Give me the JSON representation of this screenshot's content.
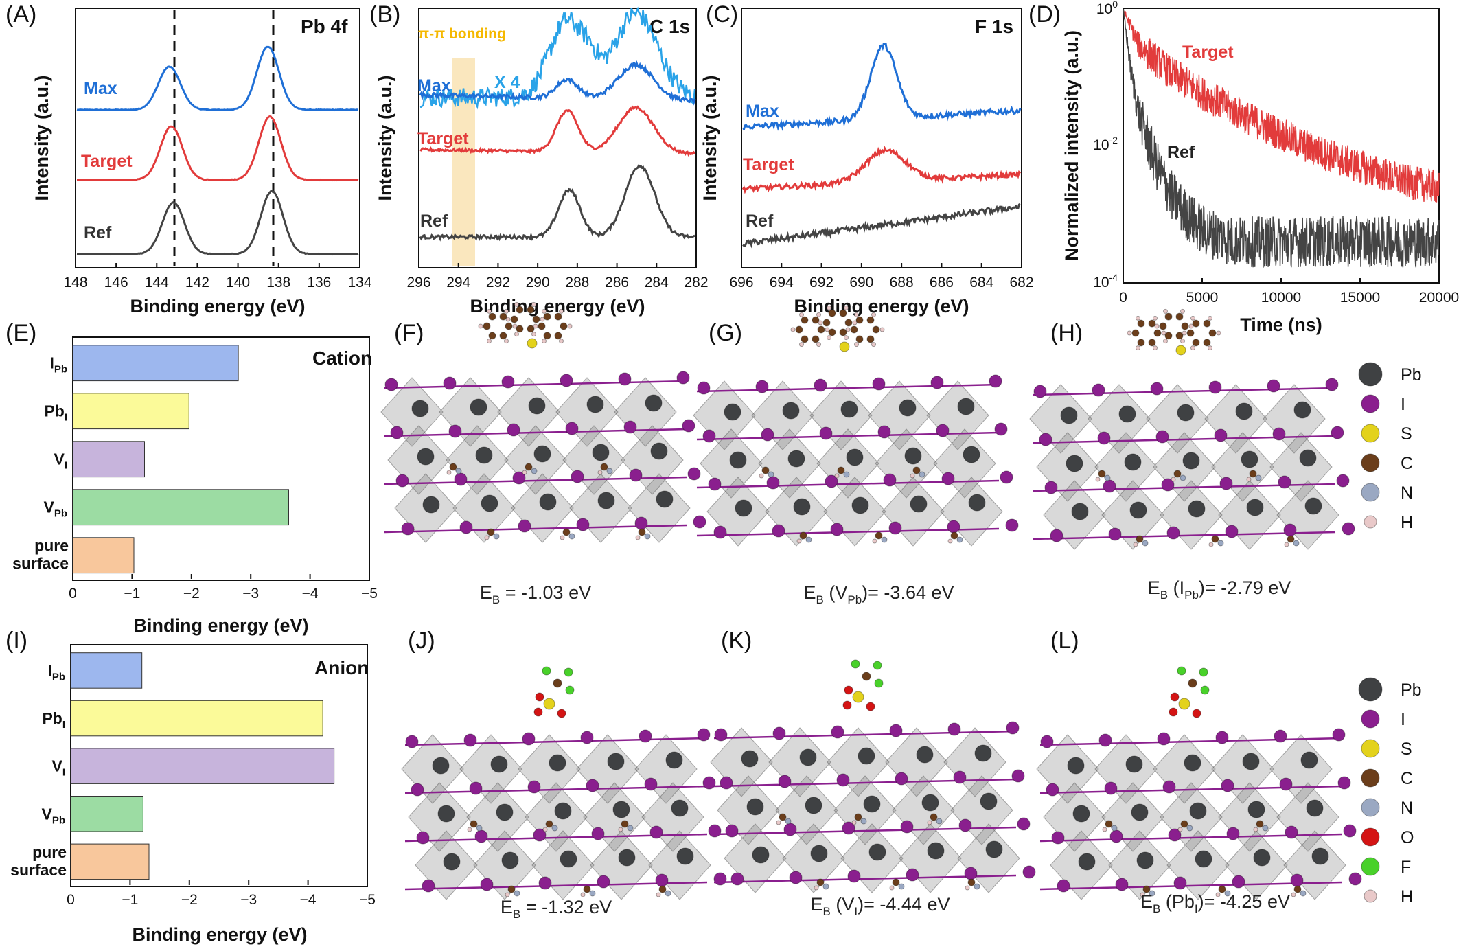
{
  "panels": {
    "A": {
      "label": "(A)",
      "corner": "Pb 4f",
      "ylabel": "Intensity (a.u.)",
      "xlabel": "Binding energy (eV)",
      "xticks": [
        "148",
        "146",
        "144",
        "142",
        "140",
        "138",
        "136",
        "134"
      ],
      "series": [
        "Max",
        "Target",
        "Ref"
      ]
    },
    "B": {
      "label": "(B)",
      "corner": "C 1s",
      "ylabel": "Intensity (a.u.)",
      "xlabel": "Binding energy (eV)",
      "xticks": [
        "296",
        "294",
        "292",
        "290",
        "288",
        "286",
        "284",
        "282"
      ],
      "series": [
        "Max",
        "Target",
        "Ref"
      ],
      "annotation": "π-π bonding",
      "zoom": "X 4"
    },
    "C": {
      "label": "(C)",
      "corner": "F 1s",
      "ylabel": "Intensity (a.u.)",
      "xlabel": "Binding energy (eV)",
      "xticks": [
        "696",
        "694",
        "692",
        "690",
        "688",
        "686",
        "684",
        "682"
      ],
      "series": [
        "Max",
        "Target",
        "Ref"
      ]
    },
    "D": {
      "label": "(D)",
      "ylabel": "Normalized intensity (a.u.)",
      "xlabel": "Time (ns)",
      "xticks": [
        "0",
        "5000",
        "10000",
        "15000",
        "20000"
      ],
      "series": [
        "Target",
        "Ref"
      ]
    },
    "E": {
      "label": "(E)",
      "corner": "Cation",
      "xlabel": "Binding energy (eV)",
      "xticks": [
        "0",
        "−1",
        "−2",
        "−3",
        "−4",
        "−5"
      ]
    },
    "I": {
      "label": "(I)",
      "corner": "Anion",
      "xlabel": "Binding energy (eV)",
      "xticks": [
        "0",
        "−1",
        "−2",
        "−3",
        "−4",
        "−5"
      ]
    }
  },
  "structures": [
    {
      "label": "(F)",
      "eb": "E",
      "sub": "B",
      "rest": " = -1.03 eV",
      "type": "cation"
    },
    {
      "label": "(G)",
      "eb": "E",
      "sub": "B",
      "mid": " (V",
      "midsub": "Pb",
      "rest": ")= -3.64 eV",
      "type": "cation"
    },
    {
      "label": "(H)",
      "eb": "E",
      "sub": "B",
      "mid": " (I",
      "midsub": "Pb",
      "rest": ")= -2.79 eV",
      "type": "cation"
    },
    {
      "label": "(J)",
      "eb": "E",
      "sub": "B",
      "rest": " = -1.32 eV",
      "type": "anion"
    },
    {
      "label": "(K)",
      "eb": "E",
      "sub": "B",
      "mid": " (V",
      "midsub": "I",
      "rest": ")= -4.44 eV",
      "type": "anion"
    },
    {
      "label": "(L)",
      "eb": "E",
      "sub": "B",
      "mid": " (Pb",
      "midsub": "I",
      "rest": ")= -4.25 eV",
      "type": "anion"
    }
  ],
  "legend_top": [
    "Pb",
    "I",
    "S",
    "C",
    "N",
    "H"
  ],
  "legend_bottom": [
    "Pb",
    "I",
    "S",
    "C",
    "N",
    "O",
    "F",
    "H"
  ],
  "element_colors": {
    "Pb": "#3f4143",
    "I": "#8a1f8e",
    "S": "#e3d21c",
    "C": "#6b3e1b",
    "N": "#9aa8c2",
    "O": "#d41414",
    "F": "#49d12a",
    "H": "#e9c9c9"
  },
  "series_colors": {
    "Max": "#1f6fd6",
    "Target": "#e23b3b",
    "Ref": "#444444",
    "zoom": "#2aa3e8"
  },
  "chart_data": [
    {
      "type": "line",
      "panel": "A",
      "title": "Pb 4f",
      "xlabel": "Binding energy (eV)",
      "ylabel": "Intensity (a.u.)",
      "xlim": [
        148,
        134
      ],
      "reference_lines": [
        143.2,
        138.3
      ],
      "series": [
        {
          "name": "Max",
          "peaks": [
            143.4,
            138.5
          ]
        },
        {
          "name": "Target",
          "peaks": [
            143.3,
            138.4
          ]
        },
        {
          "name": "Ref",
          "peaks": [
            143.2,
            138.3
          ]
        }
      ]
    },
    {
      "type": "line",
      "panel": "B",
      "title": "C 1s",
      "xlabel": "Binding energy (eV)",
      "ylabel": "Intensity (a.u.)",
      "xlim": [
        296,
        282
      ],
      "highlight_band": [
        294.2,
        293.1
      ],
      "series": [
        {
          "name": "Max",
          "peaks": [
            288.5,
            285.0
          ]
        },
        {
          "name": "Target",
          "peaks": [
            288.5,
            285.0
          ]
        },
        {
          "name": "Ref",
          "peaks": [
            288.4,
            284.8
          ]
        }
      ]
    },
    {
      "type": "line",
      "panel": "C",
      "title": "F 1s",
      "xlabel": "Binding energy (eV)",
      "ylabel": "Intensity (a.u.)",
      "xlim": [
        696,
        682
      ],
      "series": [
        {
          "name": "Max",
          "peaks": [
            688.9
          ]
        },
        {
          "name": "Target",
          "peaks": [
            688.8
          ]
        },
        {
          "name": "Ref",
          "peaks": []
        }
      ]
    },
    {
      "type": "line",
      "panel": "D",
      "yscale": "log",
      "xlabel": "Time (ns)",
      "ylabel": "Normalized intensity (a.u.)",
      "xlim": [
        0,
        20000
      ],
      "ylim": [
        0.0001,
        1
      ],
      "series": [
        {
          "name": "Target",
          "x": [
            0,
            1000,
            3000,
            5000,
            8000,
            10000,
            12000,
            15000,
            18000,
            20000
          ],
          "values": [
            1.0,
            0.3,
            0.12,
            0.06,
            0.025,
            0.015,
            0.009,
            0.005,
            0.003,
            0.0025
          ]
        },
        {
          "name": "Ref",
          "x": [
            0,
            500,
            1000,
            2000,
            3000,
            4000,
            5000,
            7000,
            10000,
            15000,
            20000
          ],
          "values": [
            1.0,
            0.12,
            0.03,
            0.006,
            0.002,
            0.001,
            0.0006,
            0.0004,
            0.0004,
            0.0004,
            0.0004
          ]
        }
      ]
    },
    {
      "type": "bar",
      "panel": "E",
      "orientation": "horizontal",
      "title": "Cation",
      "xlabel": "Binding energy (eV)",
      "xlim": [
        0,
        -5
      ],
      "categories": [
        "I_Pb",
        "Pb_I",
        "V_I",
        "V_Pb",
        "pure surface"
      ],
      "values": [
        -2.79,
        -1.96,
        -1.21,
        -3.64,
        -1.03
      ],
      "colors": [
        "#9db7ee",
        "#fbfa99",
        "#c7b4dc",
        "#9cdca3",
        "#f8c79c"
      ]
    },
    {
      "type": "bar",
      "panel": "I",
      "orientation": "horizontal",
      "title": "Anion",
      "xlabel": "Binding energy (eV)",
      "xlim": [
        0,
        -5
      ],
      "categories": [
        "I_Pb",
        "Pb_I",
        "V_I",
        "V_Pb",
        "pure surface"
      ],
      "values": [
        -1.2,
        -4.25,
        -4.44,
        -1.22,
        -1.32
      ],
      "colors": [
        "#9db7ee",
        "#fbfa99",
        "#c7b4dc",
        "#9cdca3",
        "#f8c79c"
      ]
    }
  ]
}
